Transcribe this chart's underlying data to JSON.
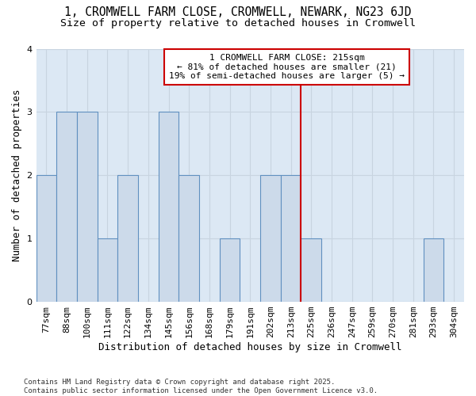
{
  "title_line1": "1, CROMWELL FARM CLOSE, CROMWELL, NEWARK, NG23 6JD",
  "title_line2": "Size of property relative to detached houses in Cromwell",
  "xlabel": "Distribution of detached houses by size in Cromwell",
  "ylabel": "Number of detached properties",
  "categories": [
    "77sqm",
    "88sqm",
    "100sqm",
    "111sqm",
    "122sqm",
    "134sqm",
    "145sqm",
    "156sqm",
    "168sqm",
    "179sqm",
    "191sqm",
    "202sqm",
    "213sqm",
    "225sqm",
    "236sqm",
    "247sqm",
    "259sqm",
    "270sqm",
    "281sqm",
    "293sqm",
    "304sqm"
  ],
  "values": [
    2,
    3,
    3,
    1,
    2,
    0,
    3,
    2,
    0,
    1,
    0,
    2,
    2,
    1,
    0,
    0,
    0,
    0,
    0,
    1,
    0
  ],
  "bar_color": "#ccdaea",
  "bar_edge_color": "#6090c0",
  "grid_color": "#c8d4e0",
  "plot_bg_color": "#dce8f4",
  "figure_bg_color": "#ffffff",
  "vline_color": "#cc0000",
  "vline_x_index": 12,
  "annotation_text": "1 CROMWELL FARM CLOSE: 215sqm\n← 81% of detached houses are smaller (21)\n19% of semi-detached houses are larger (5) →",
  "annotation_box_facecolor": "#ffffff",
  "annotation_box_edgecolor": "#cc0000",
  "footnote": "Contains HM Land Registry data © Crown copyright and database right 2025.\nContains public sector information licensed under the Open Government Licence v3.0.",
  "ylim": [
    0,
    4
  ],
  "yticks": [
    0,
    1,
    2,
    3,
    4
  ],
  "title_fontsize": 10.5,
  "subtitle_fontsize": 9.5,
  "axis_label_fontsize": 9,
  "tick_fontsize": 8,
  "annotation_fontsize": 8,
  "footnote_fontsize": 6.5
}
